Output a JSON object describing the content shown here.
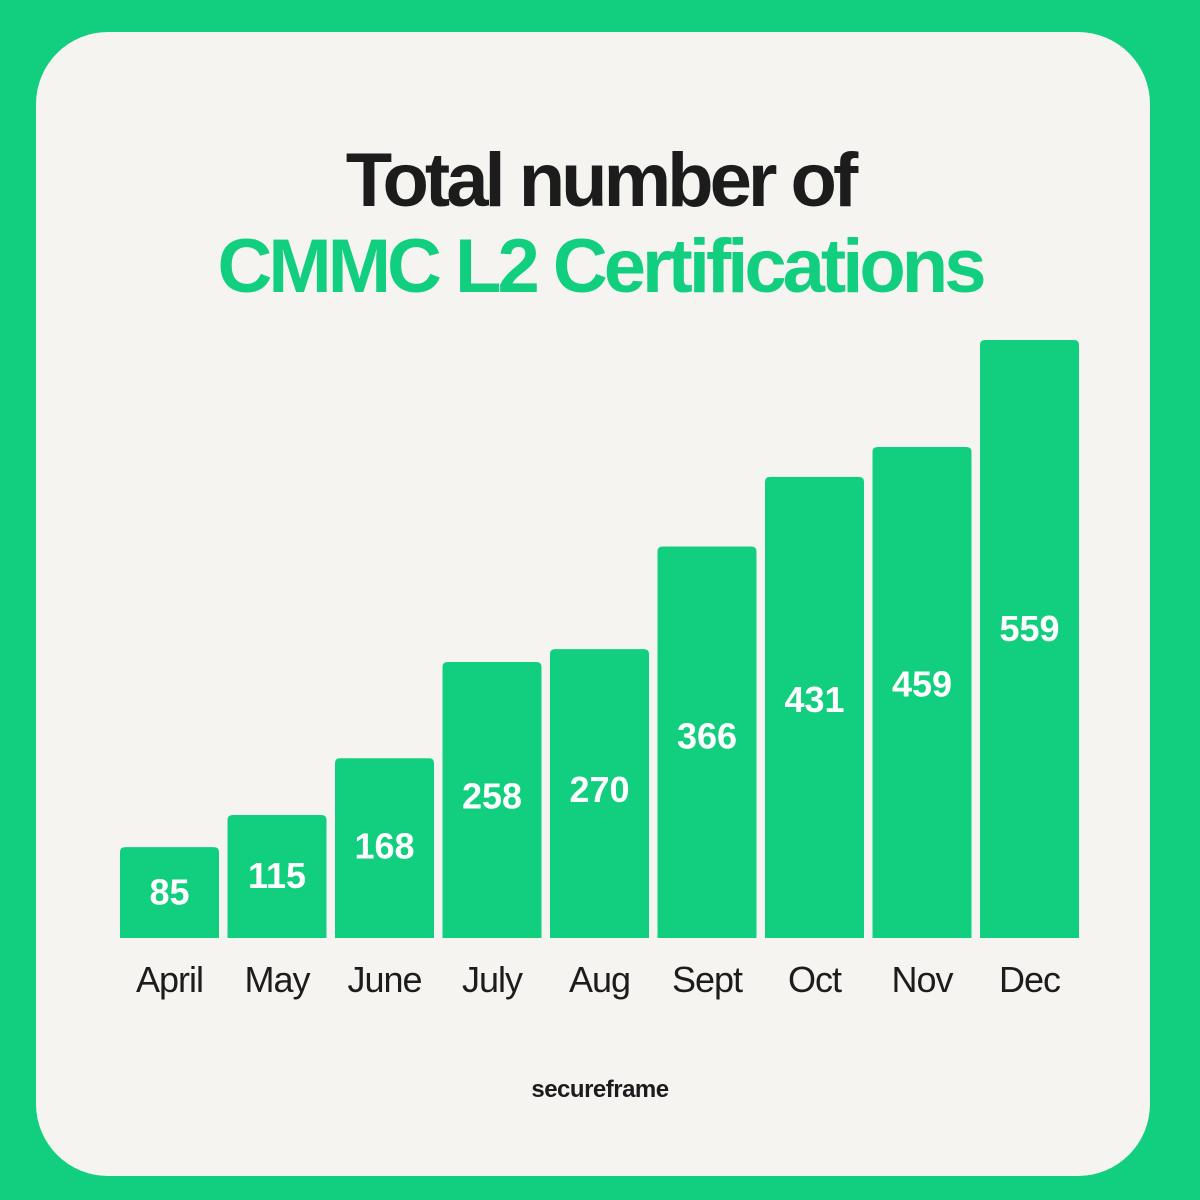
{
  "title": {
    "line1": "Total number of",
    "line2": "CMMC L2 Certifications"
  },
  "brand": "secureframe",
  "colors": {
    "background": "#12cf7f",
    "card": "#f5f4f1",
    "bar": "#12cf7f",
    "bar_label": "#ffffff",
    "text": "#1c1c1c"
  },
  "chart_data": {
    "type": "bar",
    "title": "Total number of CMMC L2 Certifications",
    "categories": [
      "April",
      "May",
      "June",
      "July",
      "Aug",
      "Sept",
      "Oct",
      "Nov",
      "Dec"
    ],
    "values": [
      85,
      115,
      168,
      258,
      270,
      366,
      431,
      459,
      559
    ],
    "xlabel": "",
    "ylabel": "",
    "ylim": [
      0,
      559
    ],
    "grid": false,
    "legend": "none",
    "data_labels": true
  }
}
